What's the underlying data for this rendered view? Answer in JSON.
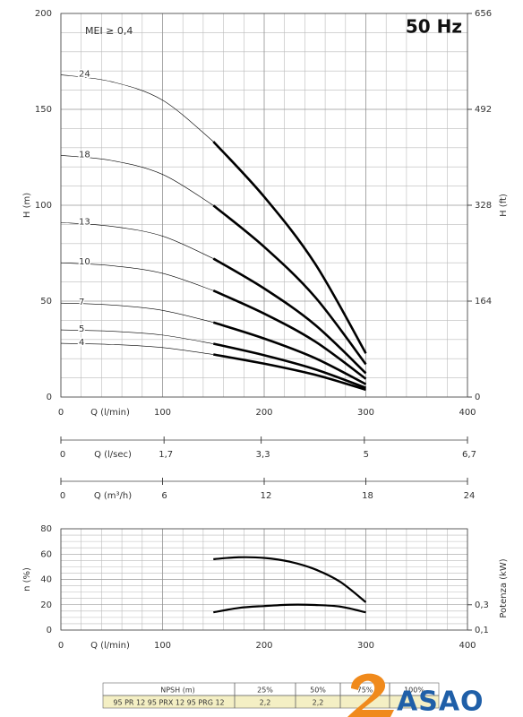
{
  "chart_data": [
    {
      "type": "line",
      "title": "50 Hz",
      "annotation": "MEI ≥ 0,4",
      "xlabel": "Q (l/min)",
      "ylabel": "H (m)",
      "y2label": "H (ft)",
      "x": [
        0,
        50,
        100,
        150,
        200,
        250,
        300
      ],
      "xlim": [
        0,
        400
      ],
      "xticks": [
        0,
        100,
        200,
        300,
        400
      ],
      "ylim": [
        0,
        200
      ],
      "yticks": [
        0,
        50,
        100,
        150,
        200
      ],
      "y2lim": [
        0,
        656
      ],
      "y2ticks": [
        0,
        164,
        328,
        492,
        656
      ],
      "x2label": "Q (l/sec)",
      "x2lim": [
        0,
        6.7
      ],
      "x2ticks": [
        0,
        {
          "value": 1.7,
          "label": "1,7"
        },
        {
          "value": 3.3,
          "label": "3,3"
        },
        5,
        {
          "value": 6.7,
          "label": "6,7"
        }
      ],
      "x3label": "Q (m³/h)",
      "x3lim": [
        0,
        24
      ],
      "x3ticks": [
        0,
        6,
        12,
        18,
        24
      ],
      "grid": true,
      "grid_step": [
        20,
        10
      ],
      "operating_range": [
        150,
        300
      ],
      "color": "#000000",
      "series": [
        {
          "name": "24",
          "values": [
            168,
            164.4,
            154.8,
            133.2,
            104.4,
            69.6,
            22.8
          ]
        },
        {
          "name": "18",
          "values": [
            126,
            123.3,
            116.1,
            99.9,
            78.3,
            52.2,
            17.1
          ]
        },
        {
          "name": "13",
          "values": [
            91,
            89,
            83.9,
            72.2,
            56.6,
            37.7,
            12.4
          ]
        },
        {
          "name": "10",
          "values": [
            70,
            68.5,
            64.5,
            55.5,
            43.5,
            29,
            9.5
          ]
        },
        {
          "name": "7",
          "values": [
            49,
            48,
            45.2,
            38.9,
            30.5,
            20.3,
            6.7
          ]
        },
        {
          "name": "5",
          "values": [
            35,
            34.3,
            32.3,
            27.8,
            21.8,
            14.5,
            4.8
          ]
        },
        {
          "name": "4",
          "values": [
            28,
            27.4,
            25.8,
            22.2,
            17.4,
            11.6,
            3.8
          ]
        }
      ]
    },
    {
      "type": "line",
      "xlabel": "Q (l/min)",
      "ylabel": "n (%)",
      "y2label": "Potenza (kW)",
      "x": [
        150,
        175,
        200,
        225,
        250,
        275,
        300
      ],
      "xlim": [
        0,
        400
      ],
      "xticks": [
        0,
        100,
        200,
        300,
        400
      ],
      "ylim": [
        0,
        80
      ],
      "yticks": [
        0,
        20,
        40,
        60,
        80
      ],
      "y2lim": [
        0.1,
        0.9
      ],
      "y2ticks": [
        {
          "value": 0.1,
          "label": "0,1"
        },
        {
          "value": 0.3,
          "label": "0,3"
        }
      ],
      "grid": true,
      "grid_step": [
        20,
        5
      ],
      "color": "#000000",
      "series": [
        {
          "values": [
            56,
            57.5,
            57,
            54,
            48,
            38,
            22
          ]
        },
        {
          "axis": "y2",
          "values": [
            0.24,
            0.275,
            0.29,
            0.3,
            0.298,
            0.285,
            0.24
          ]
        }
      ]
    }
  ],
  "table": {
    "header": [
      "NPSH (m)",
      "25%",
      "50%",
      "75%",
      "100%"
    ],
    "rows": [
      [
        "95 PR 12  95 PRX 12  95 PRG 12",
        "2,2",
        "2,2"
      ]
    ]
  },
  "logo": "ASAO"
}
